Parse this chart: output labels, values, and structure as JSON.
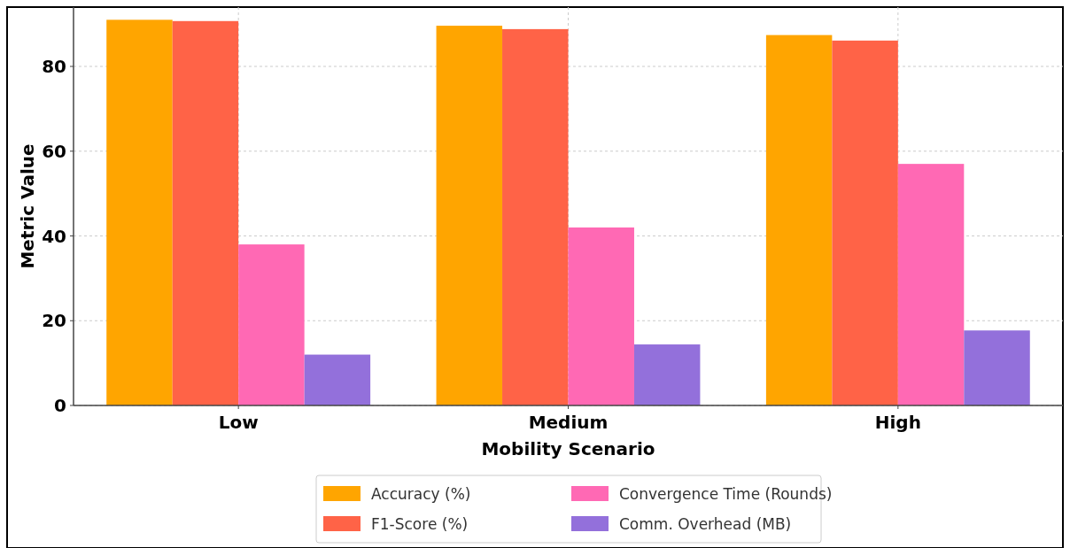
{
  "chart_data": {
    "type": "bar",
    "xlabel": "Mobility Scenario",
    "ylabel": "Metric Value",
    "categories": [
      "Low",
      "Medium",
      "High"
    ],
    "series": [
      {
        "name": "Accuracy (%)",
        "color": "#ffa500",
        "values": [
          91.0,
          89.6,
          87.4
        ]
      },
      {
        "name": "F1-Score (%)",
        "color": "#ff6347",
        "values": [
          90.7,
          88.8,
          86.1
        ]
      },
      {
        "name": "Convergence Time (Rounds)",
        "color": "#ff69b4",
        "values": [
          38,
          42,
          57
        ]
      },
      {
        "name": "Comm. Overhead (MB)",
        "color": "#9370db",
        "values": [
          12,
          14.4,
          17.7
        ]
      }
    ],
    "ylim": [
      0,
      94
    ],
    "yticks": [
      0,
      20,
      40,
      60,
      80
    ],
    "grid": true,
    "legend": "bottom"
  }
}
